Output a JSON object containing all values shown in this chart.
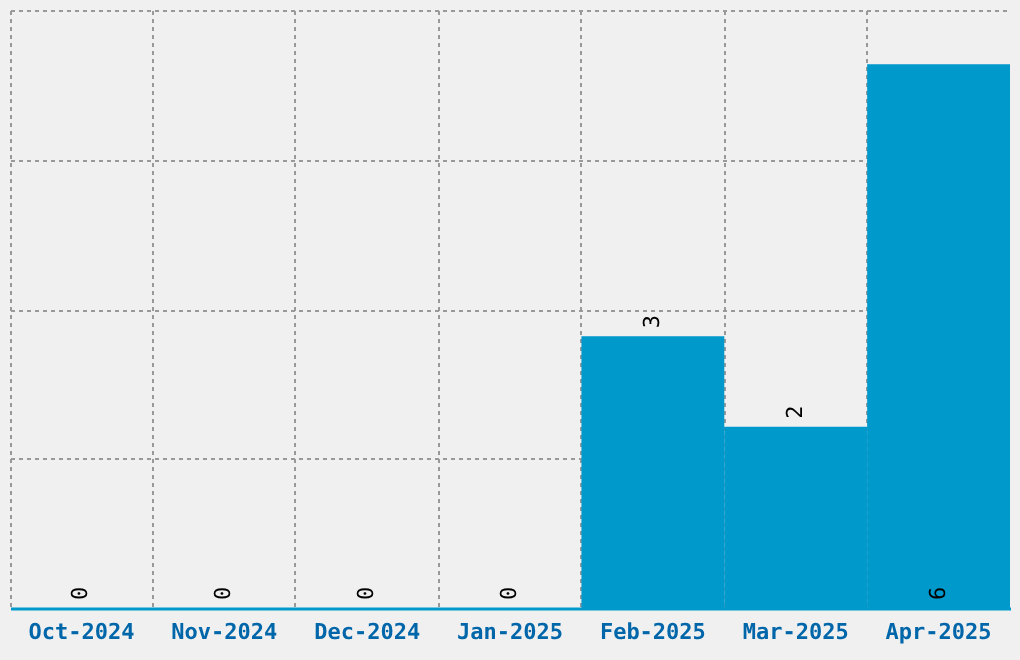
{
  "chart_data": {
    "type": "bar",
    "categories": [
      "Oct-2024",
      "Nov-2024",
      "Dec-2024",
      "Jan-2025",
      "Feb-2025",
      "Mar-2025",
      "Apr-2025"
    ],
    "values": [
      0,
      0,
      0,
      0,
      3,
      2,
      6
    ],
    "color": "#0099cc",
    "ylim": [
      0,
      6.6
    ],
    "yticks": [
      {
        "value": 0,
        "label": null
      },
      {
        "value": 1.65,
        "label": null
      },
      {
        "value": 3.3,
        "label": null
      },
      {
        "value": 4.95,
        "label": null
      },
      {
        "value": 6.6,
        "label": null
      }
    ],
    "tick_labels": "x",
    "grid": true,
    "data_labels": true
  }
}
